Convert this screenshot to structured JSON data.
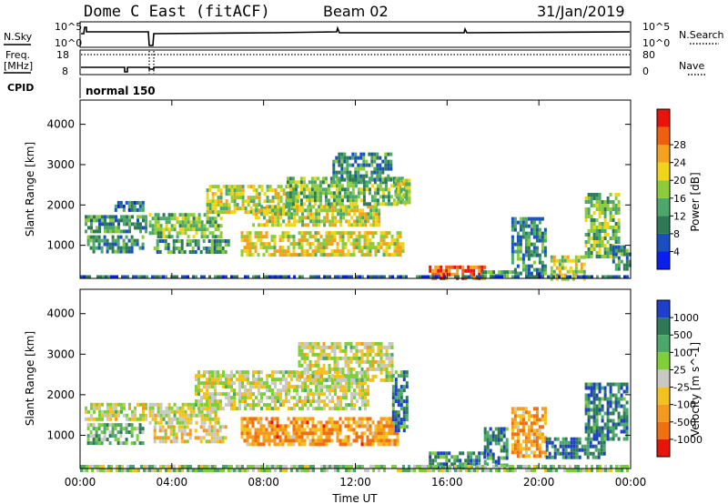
{
  "header": {
    "radar": "Dome C East (fitACF)",
    "beam": "Beam 02",
    "date": "31/Jan/2019"
  },
  "nsky_panel": {
    "left_label": "N.Sky",
    "right_label": "N.Search",
    "left_ticks": [
      "10^5",
      "10^0"
    ],
    "right_ticks": [
      "10^5",
      "10^0"
    ]
  },
  "freq_panel": {
    "left_label_1": "Freq.",
    "left_label_2": "[MHz]",
    "right_label": "Nave",
    "left_ticks": [
      "18",
      "8"
    ],
    "right_ticks": [
      "80",
      "0"
    ]
  },
  "cpid_panel": {
    "label": "CPID",
    "mode": "normal 150"
  },
  "x_axis": {
    "label": "Time UT",
    "ticks": [
      "00:00",
      "04:00",
      "08:00",
      "12:00",
      "16:00",
      "20:00",
      "00:00"
    ]
  },
  "chart_data": [
    {
      "type": "heatmap",
      "name": "power",
      "ylabel": "Slant Range [km]",
      "xlim": [
        0,
        24
      ],
      "ylim": [
        180,
        4600
      ],
      "yticks": [
        "1000",
        "2000",
        "3000",
        "4000"
      ],
      "colorbar": {
        "label": "Power [dB]",
        "ticks": [
          "4",
          "8",
          "12",
          "16",
          "20",
          "24",
          "28"
        ],
        "colors": [
          "#0a1ef0",
          "#1a4fc0",
          "#2f7a56",
          "#4ca86a",
          "#8ccc3c",
          "#f0d419",
          "#f4a21e",
          "#ee6010",
          "#e8140c"
        ]
      },
      "regions": [
        {
          "t0": 0.2,
          "t1": 2.9,
          "r0": 1300,
          "r1": 1750,
          "level": 0.35
        },
        {
          "t0": 0.3,
          "t1": 2.7,
          "r0": 850,
          "r1": 1250,
          "level": 0.3
        },
        {
          "t0": 1.5,
          "t1": 2.8,
          "r0": 1850,
          "r1": 2100,
          "level": 0.25
        },
        {
          "t0": 3.0,
          "t1": 6.2,
          "r0": 1200,
          "r1": 1800,
          "level": 0.45
        },
        {
          "t0": 3.2,
          "t1": 6.5,
          "r0": 800,
          "r1": 1150,
          "level": 0.35
        },
        {
          "t0": 5.5,
          "t1": 9.5,
          "r0": 1800,
          "r1": 2500,
          "level": 0.55
        },
        {
          "t0": 7.0,
          "t1": 14.1,
          "r0": 800,
          "r1": 1350,
          "level": 0.6
        },
        {
          "t0": 7.5,
          "t1": 13.0,
          "r0": 1500,
          "r1": 2000,
          "level": 0.55
        },
        {
          "t0": 9.0,
          "t1": 14.2,
          "r0": 2000,
          "r1": 2700,
          "level": 0.45
        },
        {
          "t0": 11.0,
          "t1": 13.6,
          "r0": 2600,
          "r1": 3300,
          "level": 0.3
        },
        {
          "t0": 13.7,
          "t1": 14.3,
          "r0": 2100,
          "r1": 2650,
          "level": 0.5
        },
        {
          "t0": 15.2,
          "t1": 17.6,
          "r0": 180,
          "r1": 500,
          "level": 0.85
        },
        {
          "t0": 17.5,
          "t1": 19.2,
          "r0": 200,
          "r1": 380,
          "level": 0.45
        },
        {
          "t0": 18.8,
          "t1": 20.3,
          "r0": 300,
          "r1": 1700,
          "level": 0.3
        },
        {
          "t0": 20.5,
          "t1": 22.0,
          "r0": 200,
          "r1": 750,
          "level": 0.55
        },
        {
          "t0": 22.0,
          "t1": 23.5,
          "r0": 700,
          "r1": 2300,
          "level": 0.45
        },
        {
          "t0": 23.2,
          "t1": 23.95,
          "r0": 400,
          "r1": 1000,
          "level": 0.3
        },
        {
          "t0": 0.0,
          "t1": 24.0,
          "r0": 180,
          "r1": 260,
          "level": 0.2
        }
      ]
    },
    {
      "type": "heatmap",
      "name": "velocity",
      "ylabel": "Slant Range [km]",
      "xlim": [
        0,
        24
      ],
      "ylim": [
        180,
        4600
      ],
      "yticks": [
        "1000",
        "2000",
        "3000",
        "4000"
      ],
      "colorbar": {
        "label": "Velocity [m s^-1]",
        "ticks": [
          "1000",
          "500",
          "100",
          "25",
          "-25",
          "-100",
          "-500",
          "-1000"
        ],
        "colors": [
          "#1d3fc9",
          "#2f7a56",
          "#4ca86a",
          "#7fcf3a",
          "#c8c8c4",
          "#f4c21e",
          "#f49a1e",
          "#ee7010",
          "#e8140c"
        ]
      },
      "regions": [
        {
          "t0": 0.2,
          "t1": 2.9,
          "r0": 1400,
          "r1": 1800,
          "level": 0.5
        },
        {
          "t0": 0.3,
          "t1": 2.7,
          "r0": 850,
          "r1": 1300,
          "level": 0.33
        },
        {
          "t0": 3.0,
          "t1": 6.0,
          "r0": 1300,
          "r1": 1800,
          "level": 0.5
        },
        {
          "t0": 3.2,
          "t1": 6.3,
          "r0": 850,
          "r1": 1250,
          "level": 0.58
        },
        {
          "t0": 5.0,
          "t1": 12.5,
          "r0": 1700,
          "r1": 2600,
          "level": 0.5
        },
        {
          "t0": 7.0,
          "t1": 13.8,
          "r0": 800,
          "r1": 1450,
          "level": 0.72
        },
        {
          "t0": 9.5,
          "t1": 13.6,
          "r0": 2400,
          "r1": 3300,
          "level": 0.5
        },
        {
          "t0": 13.6,
          "t1": 14.3,
          "r0": 1100,
          "r1": 2600,
          "level": 0.18
        },
        {
          "t0": 15.2,
          "t1": 17.8,
          "r0": 180,
          "r1": 600,
          "level": 0.2
        },
        {
          "t0": 17.6,
          "t1": 18.6,
          "r0": 300,
          "r1": 1200,
          "level": 0.2
        },
        {
          "t0": 18.8,
          "t1": 20.3,
          "r0": 500,
          "r1": 1700,
          "level": 0.7
        },
        {
          "t0": 20.3,
          "t1": 22.8,
          "r0": 450,
          "r1": 950,
          "level": 0.16
        },
        {
          "t0": 22.0,
          "t1": 23.9,
          "r0": 900,
          "r1": 2300,
          "level": 0.2
        },
        {
          "t0": 0.0,
          "t1": 24.0,
          "r0": 180,
          "r1": 270,
          "level": 0.42
        }
      ]
    }
  ]
}
